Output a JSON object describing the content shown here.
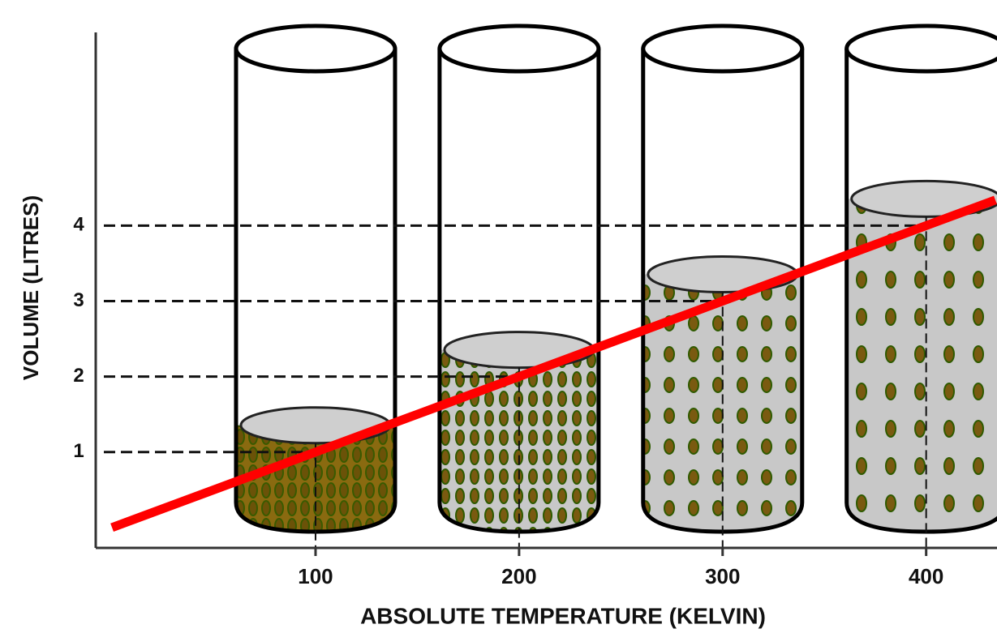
{
  "chart_data": {
    "type": "line",
    "x_label": "ABSOLUTE TEMPERATURE (KELVIN)",
    "y_label": "VOLUME (LITRES)",
    "x": [
      0,
      100,
      200,
      300,
      400,
      434
    ],
    "series": [
      {
        "color": "#ff0000",
        "values": [
          0,
          1,
          2,
          3,
          4,
          4.34
        ]
      }
    ],
    "xlim": [
      -8,
      436
    ],
    "ylim": [
      -0.27,
      6.56
    ],
    "xticks": [
      100,
      200,
      300,
      400
    ],
    "yticks": [
      1,
      2,
      3,
      4
    ]
  }
}
